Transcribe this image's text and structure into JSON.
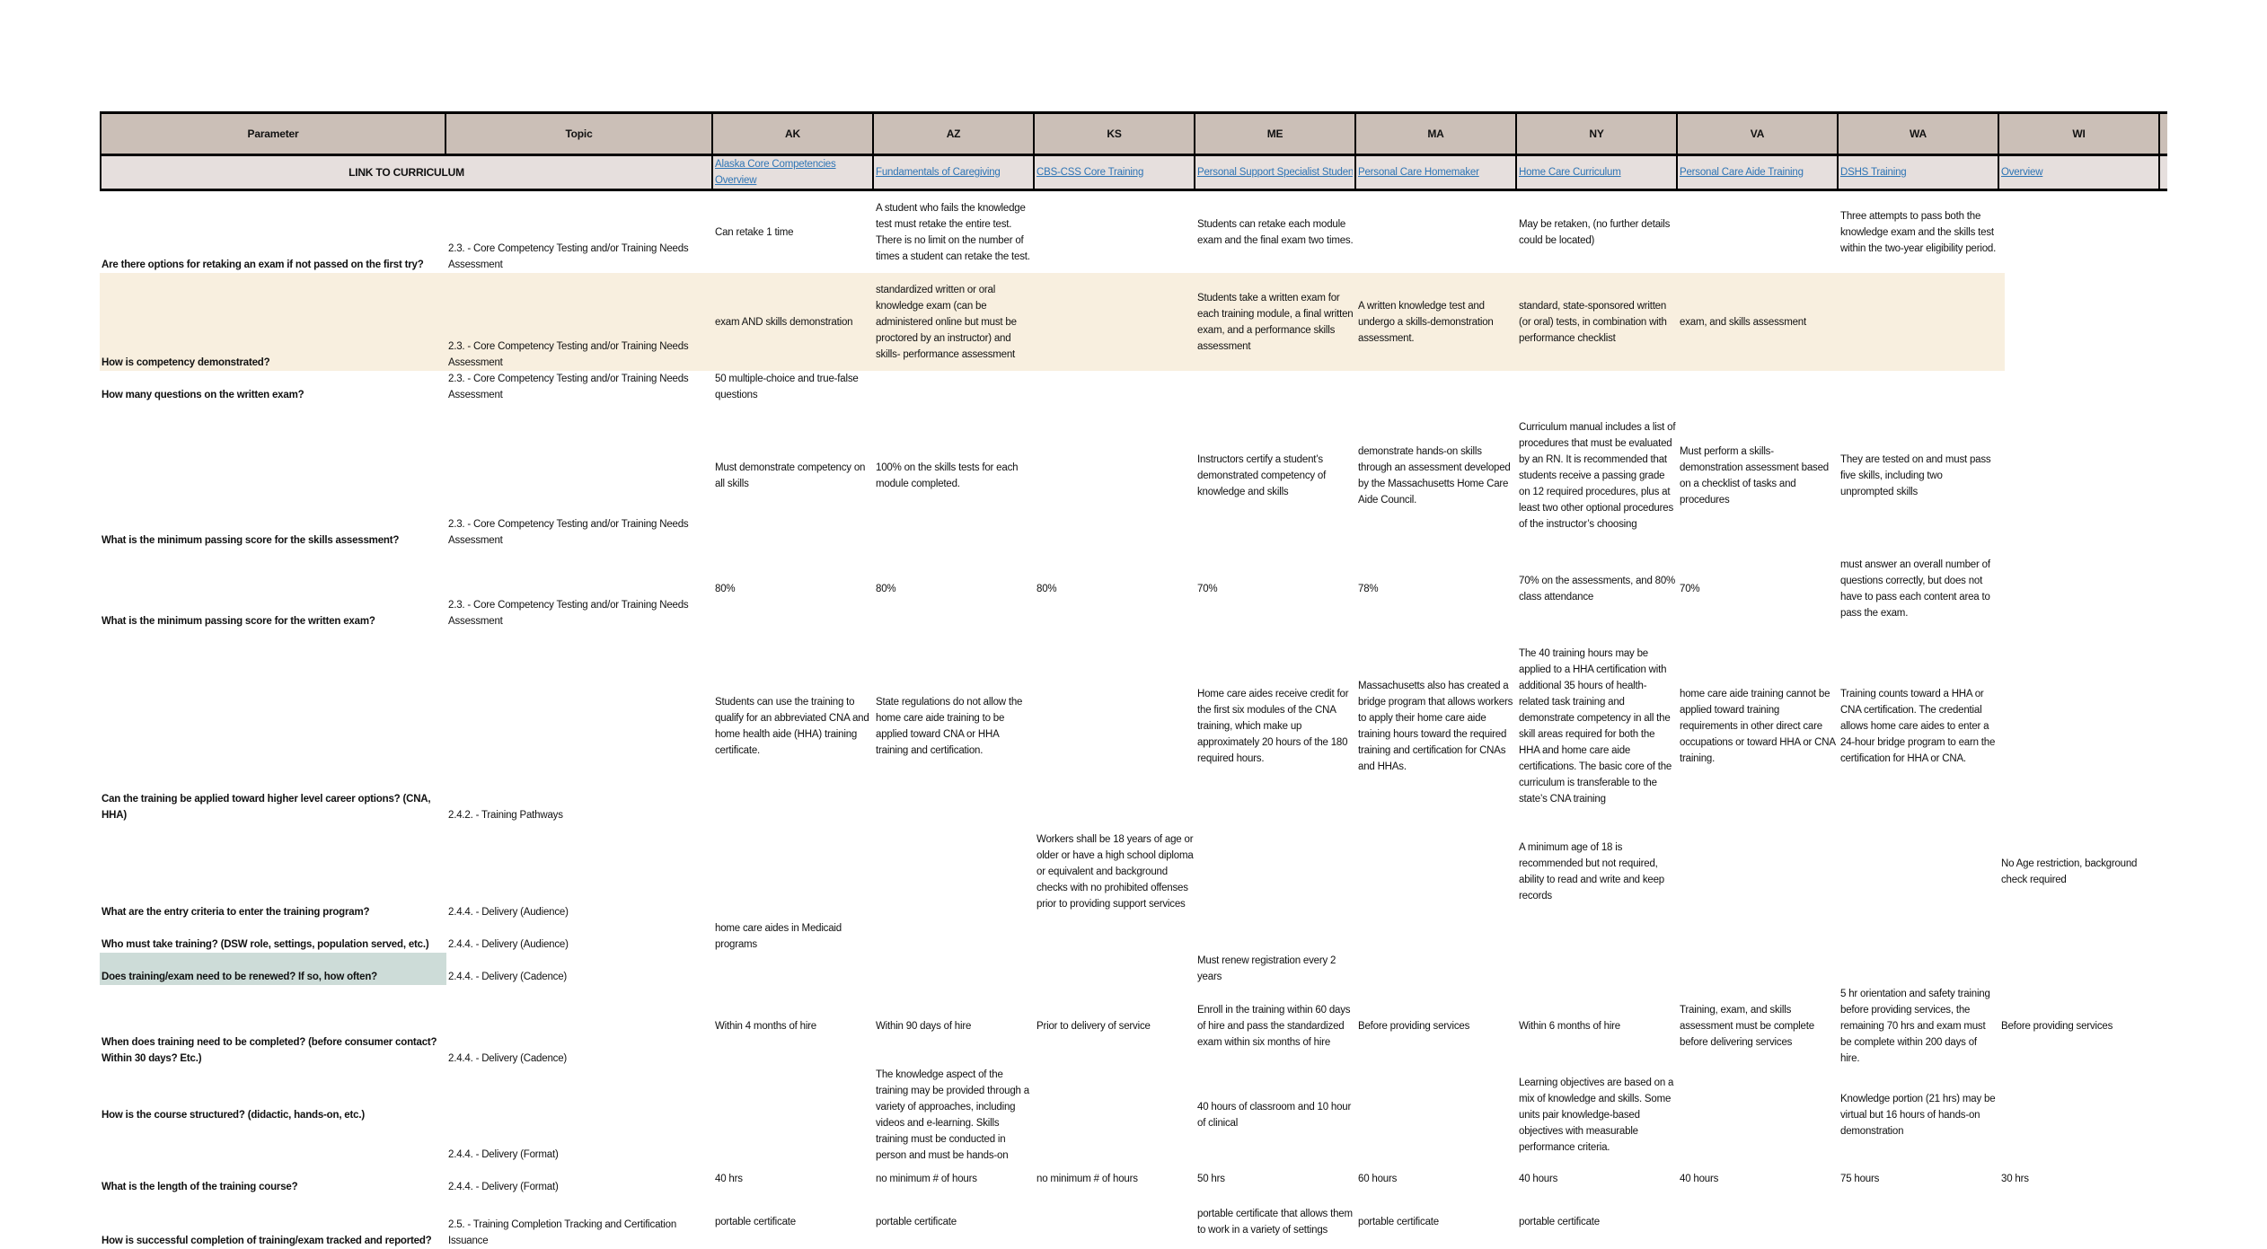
{
  "header": {
    "parameter": "Parameter",
    "topic": "Topic",
    "states": [
      "AK",
      "AZ",
      "KS",
      "ME",
      "MA",
      "NY",
      "VA",
      "WA",
      "WI"
    ]
  },
  "link_row": {
    "label": "LINK TO CURRICULUM",
    "links": [
      "Alaska Core Competencies Overview",
      "Fundamentals of Caregiving",
      "CBS-CSS Core Training",
      "Personal Support Specialist Student",
      "Personal Care Homemaker",
      "Home Care Curriculum",
      "Personal Care Aide Training",
      "DSHS Training",
      "Overview"
    ],
    "link_color": "#2f75b5"
  },
  "colors": {
    "header_bg": "#cbbfb7",
    "link_row_bg": "#e6dfdd",
    "highlight_row": "#f8efdf",
    "highlight_cell": "#cddcd8"
  },
  "rows": [
    {
      "param": "Are there options for retaking an exam if not passed on the first try?",
      "topic": "2.3. - Core Competency Testing and/or Training Needs Assessment",
      "values": [
        "Can retake 1 time",
        "A student who fails the knowledge test must retake the entire test. There is no limit on the number of times a student can retake the test.",
        "",
        "Students can retake each module exam and the final exam two times.",
        "",
        "May be retaken, (no further details could be located)",
        "",
        "Three attempts to pass both the knowledge exam and the skills test within the two-year eligibility period.",
        ""
      ]
    },
    {
      "param": "How is competency demonstrated?",
      "topic": "2.3. - Core Competency Testing and/or Training Needs Assessment",
      "values": [
        "exam AND skills demonstration",
        "standardized written or oral knowledge exam (can be administered online but must be proctored by an instructor) and skills- performance assessment",
        "",
        "Students take a written exam for each training module, a final written exam, and a performance skills assessment",
        "A  written knowledge test and undergo a skills-demonstration assessment.",
        "standard, state-sponsored written (or oral) tests, in combination with performance checklist",
        "exam, and skills assessment",
        "",
        ""
      ]
    },
    {
      "param": "How many questions on the written exam?",
      "topic": "2.3. - Core Competency Testing and/or Training Needs Assessment",
      "values": [
        "50 multiple-choice and true-false questions",
        "",
        "",
        "",
        "",
        "",
        "",
        "",
        ""
      ]
    },
    {
      "param": "What is the minimum passing score for the skills assessment?",
      "topic": "2.3. - Core Competency Testing and/or Training Needs Assessment",
      "values": [
        "Must demonstrate competency on all skills",
        "100% on the skills tests for each module completed.",
        "",
        "Instructors certify a student’s demonstrated competency of knowledge and skills",
        "demonstrate hands-on skills through an assessment developed by the Massachusetts Home Care Aide Council.",
        "Curriculum manual includes a list of procedures that must be evaluated by an RN. It is recommended that students receive a passing grade on 12 required procedures, plus at least two other optional procedures of the instructor’s choosing",
        "Must perform a skills-demonstration assessment based on a checklist of tasks and procedures",
        "They are tested on and must pass five skills, including two unprompted skills",
        ""
      ]
    },
    {
      "param": "What is the minimum passing score for the written exam?",
      "topic": "2.3. - Core Competency Testing and/or Training Needs Assessment",
      "values": [
        "80%",
        "80%",
        "80%",
        "70%",
        "78%",
        "70% on the assessments, and 80% class attendance",
        "70%",
        "must answer an overall number of questions correctly, but does not have to pass each content area to pass the exam.",
        ""
      ]
    },
    {
      "param": "Can the training be applied toward higher level career options? (CNA, HHA)",
      "topic": "2.4.2. - Training Pathways",
      "values": [
        "Students can use the training to qualify for an abbreviated CNA and home health aide (HHA) training certificate.",
        "State regulations do not allow the home care aide training to be applied toward CNA or HHA training and certification.",
        "",
        "Home care aides receive credit for the first six modules of the CNA training, which make up approximately 20 hours of the 180 required hours.",
        "Massachusetts also has created a bridge program that allows workers to apply their home care aide training hours toward the required training and certification for CNAs and HHAs.",
        "The 40 training hours may be applied to a HHA certification with additional 35 hours of health-related task training and demonstrate competency in all the skill areas required for both the HHA and home care aide certifications. The basic core of the curriculum is transferable to the state’s CNA training",
        "home care aide training cannot be applied toward training requirements in other direct care occupations or toward HHA or CNA training.",
        "Training counts toward a HHA or CNA certification. The credential allows home care aides to enter a 24-hour bridge program to earn the certification for HHA or CNA.",
        ""
      ]
    },
    {
      "param": "What are the entry criteria to enter the training program?",
      "topic": "2.4.4. - Delivery (Audience)",
      "values": [
        "",
        "",
        "Workers shall be 18 years of age or older or have a high school diploma or equivalent and background checks with no prohibited offenses prior to providing support services",
        "",
        "",
        "A minimum age of 18 is recommended but not required, ability to read and write and keep records",
        "",
        "",
        "No Age restriction, background check required"
      ]
    },
    {
      "param": "Who must take training? (DSW role, settings, population served, etc.)",
      "topic": "2.4.4. - Delivery (Audience)",
      "values": [
        "home care aides in Medicaid programs",
        "",
        "",
        "",
        "",
        "",
        "",
        "",
        ""
      ]
    },
    {
      "param": "Does training/exam need to be renewed? If so, how often?",
      "topic": "2.4.4. - Delivery (Cadence)",
      "values": [
        "",
        "",
        "",
        "Must renew registration every 2 years",
        "",
        "",
        "",
        "",
        ""
      ]
    },
    {
      "param": "When does training need to be completed? (before consumer contact? Within 30 days? Etc.)",
      "topic": "2.4.4. - Delivery (Cadence)",
      "values": [
        "Within 4 months of hire",
        "Within 90 days of hire",
        "Prior to delivery of service",
        "Enroll in the training within 60 days of hire and pass the standardized exam within six months of hire",
        "Before providing services",
        "Within 6 months of hire",
        "Training, exam, and skills assessment  must be complete before delivering services",
        "5 hr orientation and safety training before providing services, the remaining 70 hrs and exam must be complete within 200 days of hire.",
        "Before providing services"
      ]
    },
    {
      "param": "How is the course structured? (didactic, hands-on, etc.)",
      "topic": "2.4.4. - Delivery (Format)",
      "values": [
        "",
        "The knowledge aspect of the training may be provided through a variety of approaches, including videos and e-learning. Skills training must be conducted in person and must be hands-on",
        "",
        "40 hours of classroom and 10 hour of clinical",
        "",
        "Learning objectives are based on a mix of knowledge and skills. Some units pair knowledge-based objectives with measurable performance criteria.",
        "",
        "Knowledge portion (21 hrs) may be virtual but 16 hours of hands-on demonstration",
        ""
      ]
    },
    {
      "param": "What is the length of the training course?",
      "topic": "2.4.4. - Delivery (Format)",
      "values": [
        "40 hrs",
        "no minimum # of hours",
        "no minimum # of hours",
        "50 hrs",
        "60 hours",
        "40 hours",
        "40 hours",
        "75 hours",
        "30 hrs"
      ]
    },
    {
      "param": "How is successful completion of training/exam tracked and reported?",
      "topic": "2.5. - Training Completion Tracking and Certification Issuance",
      "values": [
        "portable certificate",
        "portable certificate",
        "",
        "portable certificate that allows them to work in a variety of settings",
        "portable certificate",
        "portable certificate",
        "",
        "",
        ""
      ]
    }
  ]
}
